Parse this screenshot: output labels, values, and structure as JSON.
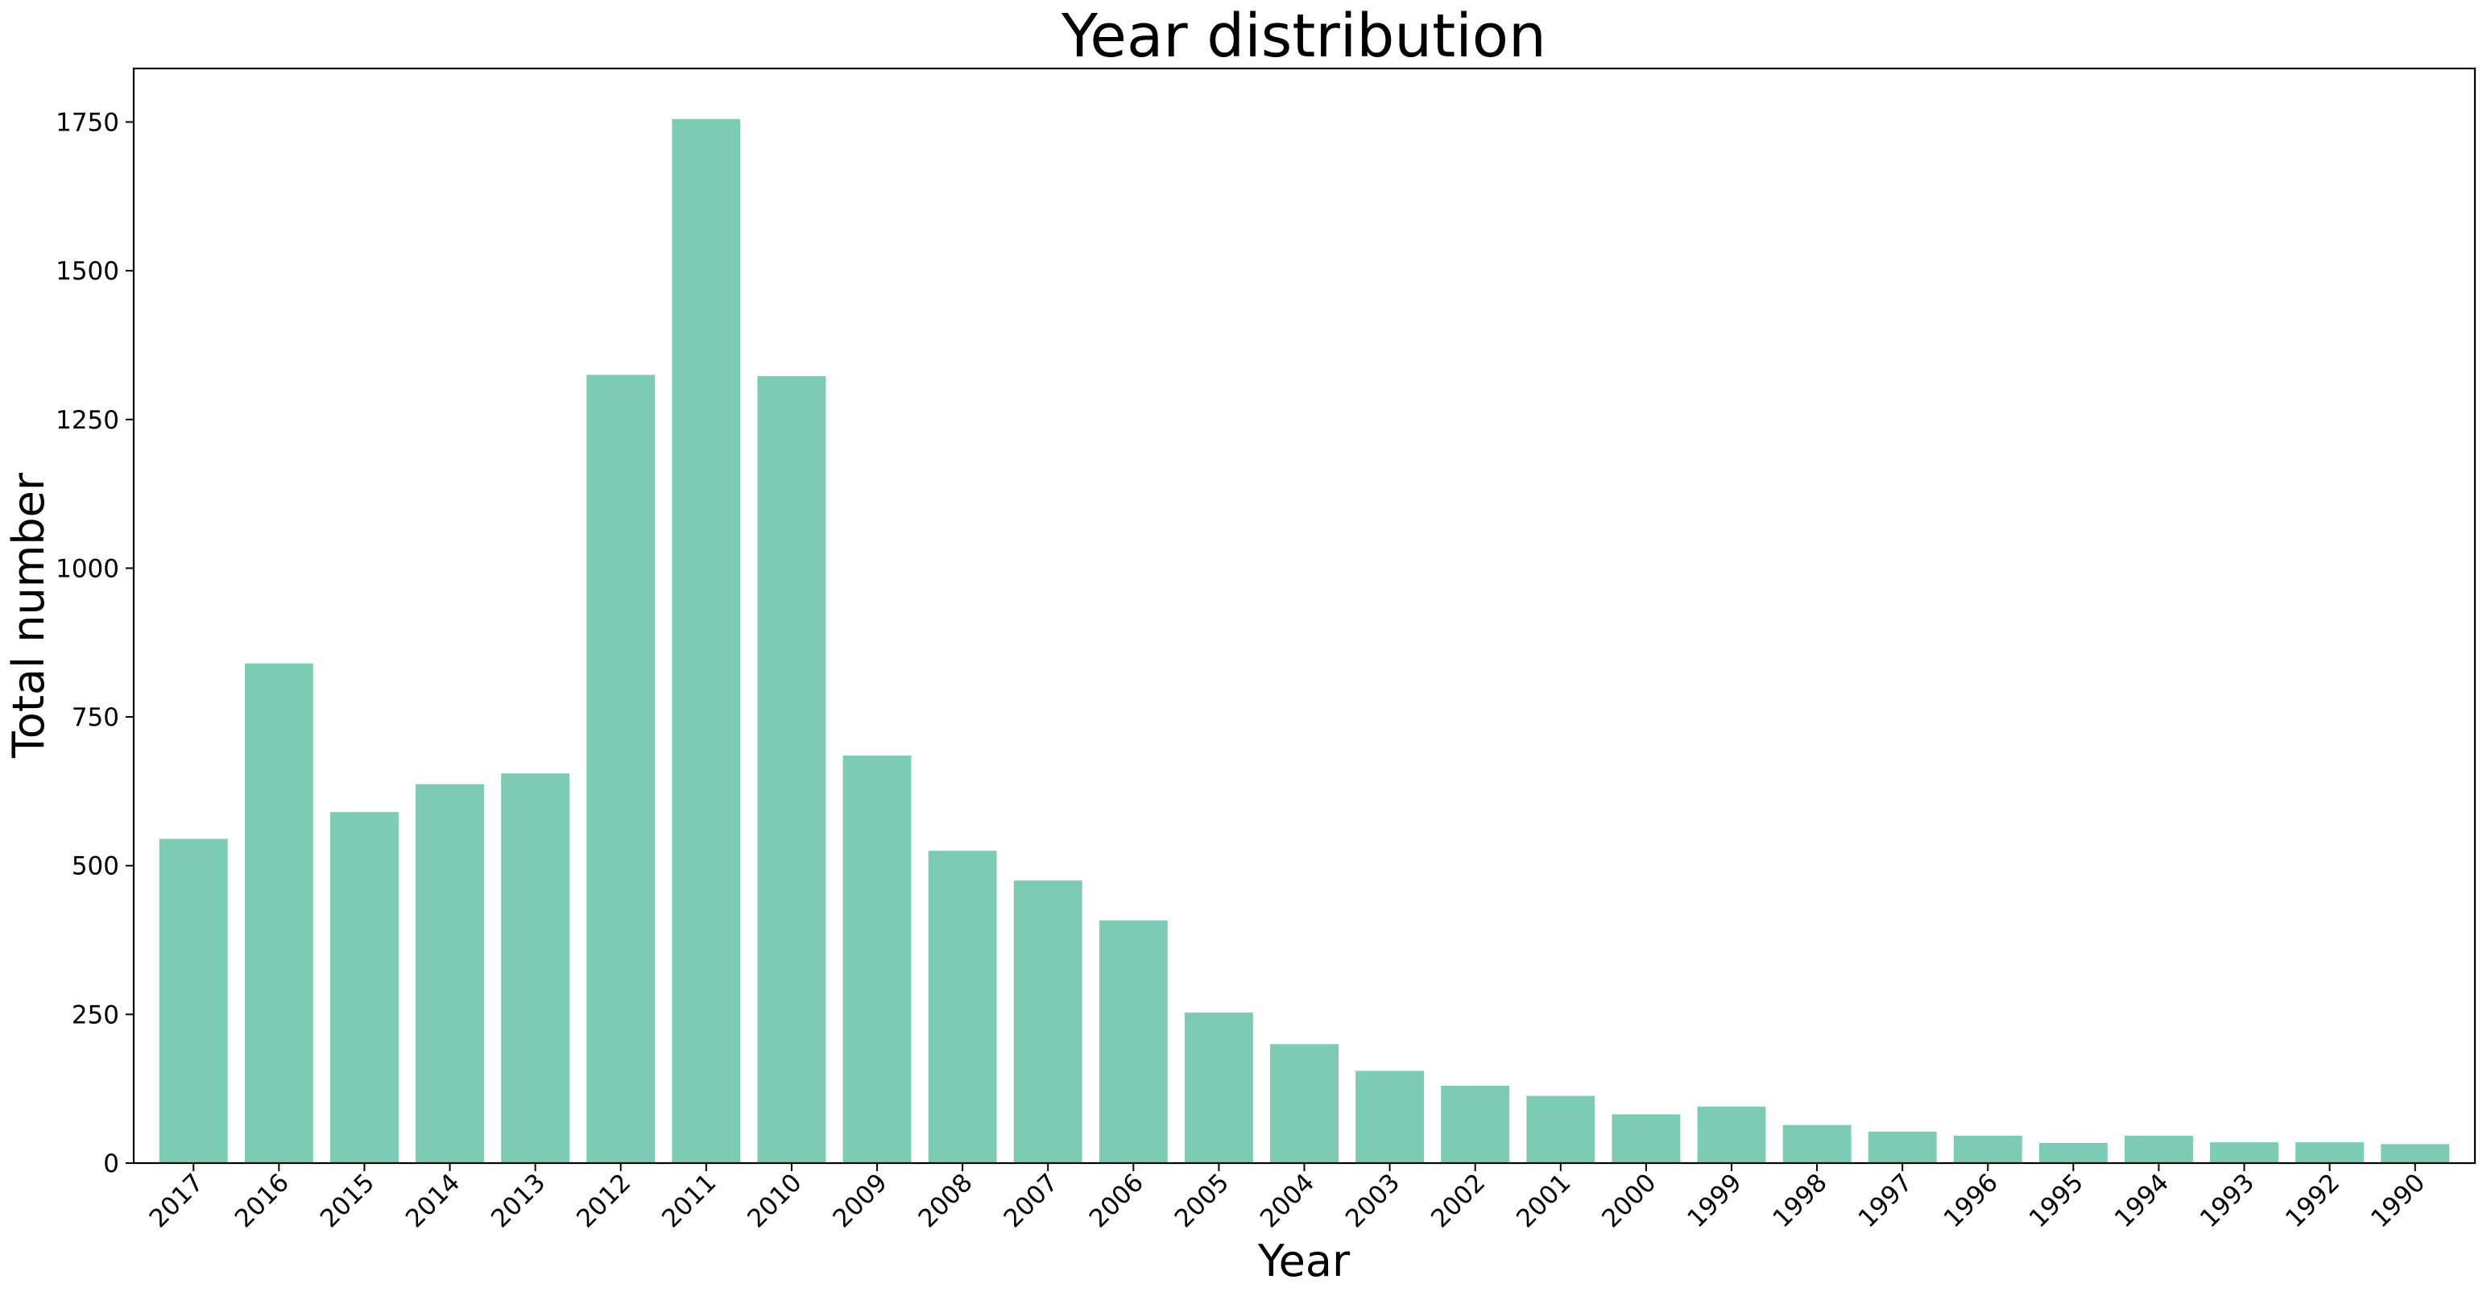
{
  "chart_data": {
    "type": "bar",
    "title": "Year distribution",
    "xlabel": "Year",
    "ylabel": "Total number",
    "categories": [
      "2017",
      "2016",
      "2015",
      "2014",
      "2013",
      "2012",
      "2011",
      "2010",
      "2009",
      "2008",
      "2007",
      "2006",
      "2005",
      "2004",
      "2003",
      "2002",
      "2001",
      "2000",
      "1999",
      "1998",
      "1997",
      "1996",
      "1995",
      "1994",
      "1993",
      "1992",
      "1990"
    ],
    "values": [
      545,
      840,
      590,
      637,
      655,
      1325,
      1755,
      1323,
      685,
      525,
      475,
      408,
      253,
      200,
      155,
      130,
      113,
      82,
      95,
      64,
      53,
      46,
      34,
      46,
      35,
      35,
      32
    ],
    "ylim": [
      0,
      1840
    ],
    "yticks": [
      0,
      250,
      500,
      750,
      1000,
      1250,
      1500,
      1750
    ],
    "bar_color": "#7ccbb4",
    "grid": false,
    "legend": "none"
  }
}
